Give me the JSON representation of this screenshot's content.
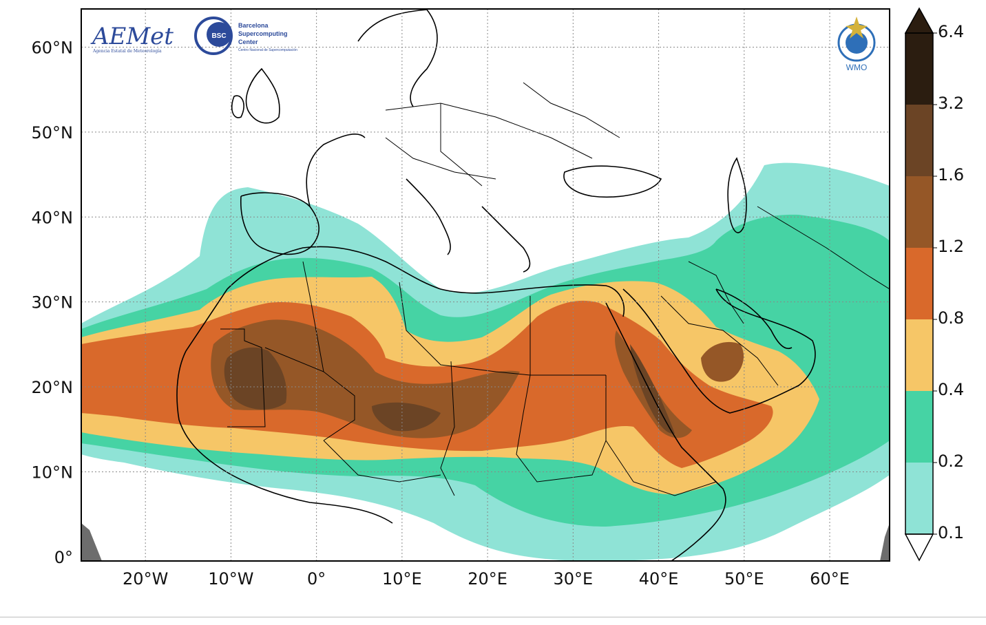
{
  "map": {
    "lon_labels": [
      "20°W",
      "10°W",
      "0°",
      "10°E",
      "20°E",
      "30°E",
      "40°E",
      "50°E",
      "60°E"
    ],
    "lat_labels": [
      "60°N",
      "50°N",
      "40°N",
      "30°N",
      "20°N",
      "10°N",
      "0°"
    ],
    "lon_range": [
      -27.5,
      67
    ],
    "lat_range": [
      -0.5,
      64.5
    ],
    "grid": "dotted"
  },
  "colorbar": {
    "levels": [
      "6.4",
      "3.2",
      "1.6",
      "1.2",
      "0.8",
      "0.4",
      "0.2",
      "0.1"
    ],
    "colors": [
      "#2b1d10",
      "#6b4425",
      "#955727",
      "#d9692b",
      "#f6c667",
      "#46d3a4",
      "#8fe3d6"
    ],
    "extend": "both"
  },
  "logos": {
    "aemet": "AEMet",
    "aemet_sub": "Agencia Estatal de Meteorología",
    "bsc_badge": "BSC",
    "bsc_line1": "Barcelona",
    "bsc_line2": "Supercomputing",
    "bsc_line3": "Center",
    "bsc_sub": "Centro Nacional de Supercomputación",
    "wmo": "WMO"
  },
  "colors": {
    "sea_land": "#ffffff",
    "border": "#000000",
    "no_data": "#6d6d6d"
  }
}
